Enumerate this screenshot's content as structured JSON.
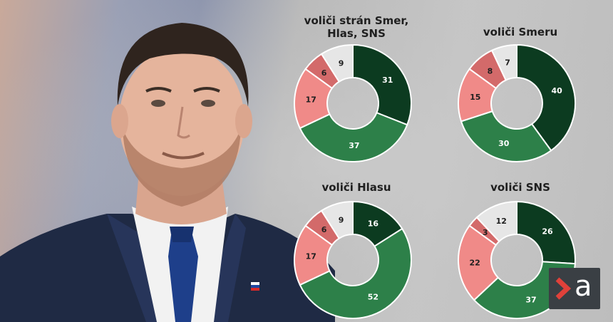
{
  "colors": {
    "dark_green": "#0c3b20",
    "green": "#2d8049",
    "light_red": "#f08a88",
    "dark_red": "#d36a6a",
    "light_grey": "#e6e6e6"
  },
  "photo": {
    "subject": "man-in-suit-photo",
    "icon": "slovak-flag-pin-icon"
  },
  "logo": {
    "icon": "chevron-right-icon",
    "letter": "a"
  },
  "chart_data": [
    {
      "type": "pie",
      "title": "voliči strán Smer, Hlas, SNS",
      "values": [
        31,
        37,
        17,
        6,
        9
      ]
    },
    {
      "type": "pie",
      "title": "voliči Smeru",
      "values": [
        40,
        30,
        15,
        8,
        7
      ]
    },
    {
      "type": "pie",
      "title": "voliči Hlasu",
      "values": [
        16,
        52,
        17,
        6,
        9
      ]
    },
    {
      "type": "pie",
      "title": "voliči SNS",
      "values": [
        26,
        37,
        22,
        3,
        12
      ]
    }
  ]
}
